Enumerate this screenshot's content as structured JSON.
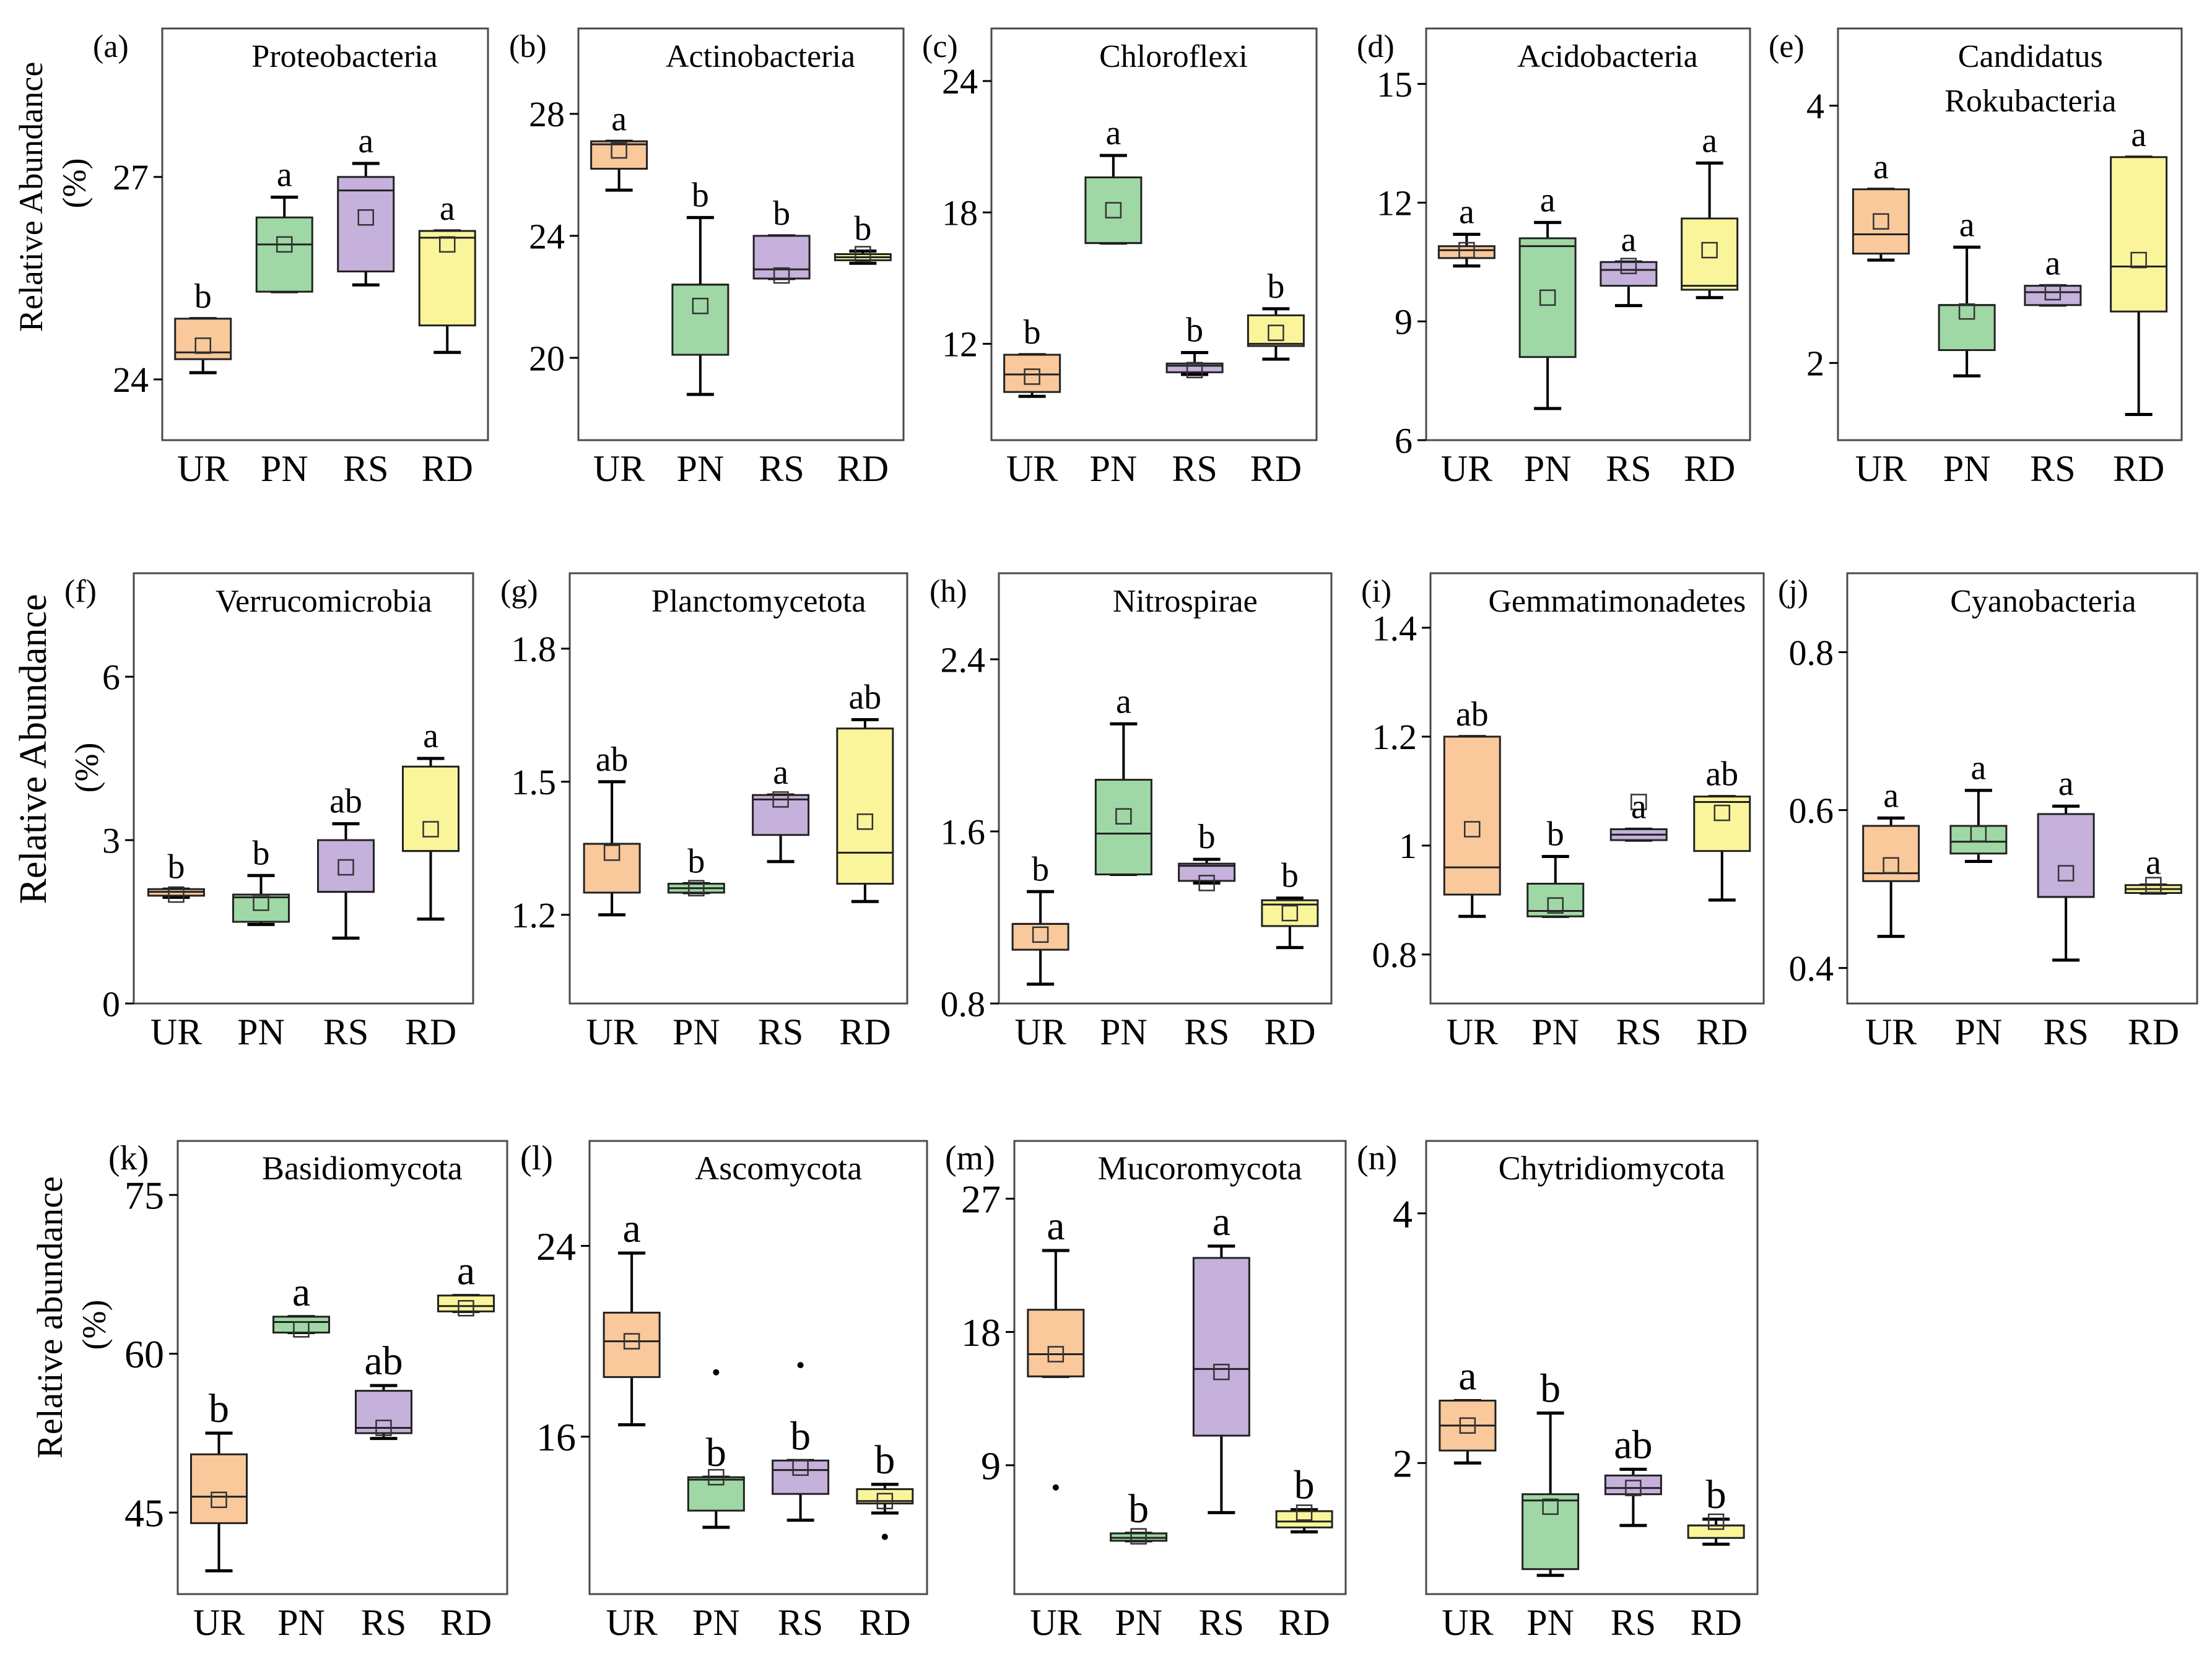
{
  "groups": [
    "UR",
    "PN",
    "RS",
    "RD"
  ],
  "colors": {
    "UR": "#f9c89b",
    "PN": "#9fd8a4",
    "RS": "#c5b1dc",
    "RD": "#faf59a"
  },
  "row_ylabels": [
    {
      "line1": "Relative Abundance",
      "line2": "(%)"
    },
    {
      "line1": "Relative Abundance",
      "line2": "(%)"
    },
    {
      "line1": "Relative abundance",
      "line2": "(%)"
    }
  ],
  "chart_data": [
    {
      "type": "box",
      "panel": "(a)",
      "title": [
        "Proteobacteria"
      ],
      "ylim": [
        23.1,
        29.2
      ],
      "yticks": [
        24,
        27
      ],
      "boxes": [
        {
          "group": "UR",
          "whisker_low": 24.1,
          "q1": 24.3,
          "median": 24.4,
          "q3": 24.9,
          "whisker_high": 24.9,
          "mean": 24.5,
          "letter": "b"
        },
        {
          "group": "PN",
          "whisker_low": 25.3,
          "q1": 25.3,
          "median": 26.0,
          "q3": 26.4,
          "whisker_high": 26.7,
          "mean": 26.0,
          "letter": "a"
        },
        {
          "group": "RS",
          "whisker_low": 25.4,
          "q1": 25.6,
          "median": 26.8,
          "q3": 27.0,
          "whisker_high": 27.2,
          "mean": 26.4,
          "letter": "a"
        },
        {
          "group": "RD",
          "whisker_low": 24.4,
          "q1": 24.8,
          "median": 26.1,
          "q3": 26.2,
          "whisker_high": 26.2,
          "mean": 26.0,
          "letter": "a"
        }
      ]
    },
    {
      "type": "box",
      "panel": "(b)",
      "title": [
        "Actinobacteria"
      ],
      "ylim": [
        17.3,
        30.8
      ],
      "yticks": [
        20,
        24,
        28
      ],
      "boxes": [
        {
          "group": "UR",
          "whisker_low": 25.5,
          "q1": 26.2,
          "median": 27.0,
          "q3": 27.1,
          "whisker_high": 27.1,
          "mean": 26.8,
          "letter": "a"
        },
        {
          "group": "PN",
          "whisker_low": 18.8,
          "q1": 20.1,
          "median": 22.4,
          "q3": 22.4,
          "whisker_high": 24.6,
          "mean": 21.7,
          "letter": "b"
        },
        {
          "group": "RS",
          "whisker_low": 22.6,
          "q1": 22.6,
          "median": 22.9,
          "q3": 24.0,
          "whisker_high": 24.0,
          "mean": 22.7,
          "letter": "b"
        },
        {
          "group": "RD",
          "whisker_low": 23.1,
          "q1": 23.2,
          "median": 23.3,
          "q3": 23.4,
          "whisker_high": 23.5,
          "mean": 23.4,
          "letter": "b"
        }
      ]
    },
    {
      "type": "box",
      "panel": "(c)",
      "title": [
        "Chloroflexi"
      ],
      "ylim": [
        7.6,
        26.4
      ],
      "yticks": [
        12,
        18,
        24
      ],
      "boxes": [
        {
          "group": "UR",
          "whisker_low": 9.6,
          "q1": 9.8,
          "median": 10.6,
          "q3": 11.5,
          "whisker_high": 11.5,
          "mean": 10.5,
          "letter": "b"
        },
        {
          "group": "PN",
          "whisker_low": 16.6,
          "q1": 16.6,
          "median": 16.6,
          "q3": 19.6,
          "whisker_high": 20.6,
          "mean": 18.1,
          "letter": "a"
        },
        {
          "group": "RS",
          "whisker_low": 10.6,
          "q1": 10.7,
          "median": 11.0,
          "q3": 11.1,
          "whisker_high": 11.6,
          "mean": 10.8,
          "letter": "b"
        },
        {
          "group": "RD",
          "whisker_low": 11.3,
          "q1": 11.9,
          "median": 12.0,
          "q3": 13.3,
          "whisker_high": 13.6,
          "mean": 12.5,
          "letter": "b"
        }
      ]
    },
    {
      "type": "box",
      "panel": "(d)",
      "title": [
        "Acidobacteria"
      ],
      "ylim": [
        6,
        16.4
      ],
      "yticks": [
        6,
        9,
        12,
        15
      ],
      "boxes": [
        {
          "group": "UR",
          "whisker_low": 10.4,
          "q1": 10.6,
          "median": 10.8,
          "q3": 10.9,
          "whisker_high": 11.2,
          "mean": 10.8,
          "letter": "a"
        },
        {
          "group": "PN",
          "whisker_low": 6.8,
          "q1": 8.1,
          "median": 10.9,
          "q3": 11.1,
          "whisker_high": 11.5,
          "mean": 9.6,
          "letter": "a"
        },
        {
          "group": "RS",
          "whisker_low": 9.4,
          "q1": 9.9,
          "median": 10.3,
          "q3": 10.5,
          "whisker_high": 10.5,
          "mean": 10.4,
          "letter": "a"
        },
        {
          "group": "RD",
          "whisker_low": 9.6,
          "q1": 9.8,
          "median": 9.9,
          "q3": 11.6,
          "whisker_high": 13.0,
          "mean": 10.8,
          "letter": "a"
        }
      ]
    },
    {
      "type": "box",
      "panel": "(e)",
      "title": [
        "Candidatus",
        "Rokubacteria"
      ],
      "ylim": [
        1.4,
        4.6
      ],
      "yticks": [
        2,
        4
      ],
      "boxes": [
        {
          "group": "UR",
          "whisker_low": 2.8,
          "q1": 2.85,
          "median": 3.0,
          "q3": 3.35,
          "whisker_high": 3.35,
          "mean": 3.1,
          "letter": "a"
        },
        {
          "group": "PN",
          "whisker_low": 1.9,
          "q1": 2.1,
          "median": 2.45,
          "q3": 2.45,
          "whisker_high": 2.9,
          "mean": 2.4,
          "letter": "a"
        },
        {
          "group": "RS",
          "whisker_low": 2.45,
          "q1": 2.45,
          "median": 2.55,
          "q3": 2.6,
          "whisker_high": 2.6,
          "mean": 2.55,
          "letter": "a"
        },
        {
          "group": "RD",
          "whisker_low": 1.6,
          "q1": 2.4,
          "median": 2.75,
          "q3": 3.6,
          "whisker_high": 3.6,
          "mean": 2.8,
          "letter": "a"
        }
      ]
    },
    {
      "type": "box",
      "panel": "(f)",
      "title": [
        "Verrucomicrobia"
      ],
      "ylim": [
        0,
        7.9
      ],
      "yticks": [
        0,
        3,
        6
      ],
      "boxes": [
        {
          "group": "UR",
          "whisker_low": 1.95,
          "q1": 1.98,
          "median": 2.05,
          "q3": 2.1,
          "whisker_high": 2.1,
          "mean": 2.0,
          "letter": "b"
        },
        {
          "group": "PN",
          "whisker_low": 1.45,
          "q1": 1.5,
          "median": 1.95,
          "q3": 2.0,
          "whisker_high": 2.35,
          "mean": 1.85,
          "letter": "b"
        },
        {
          "group": "RS",
          "whisker_low": 1.2,
          "q1": 2.05,
          "median": 2.05,
          "q3": 3.0,
          "whisker_high": 3.3,
          "mean": 2.5,
          "letter": "ab"
        },
        {
          "group": "RD",
          "whisker_low": 1.55,
          "q1": 2.8,
          "median": 2.8,
          "q3": 4.35,
          "whisker_high": 4.5,
          "mean": 3.2,
          "letter": "a"
        }
      ]
    },
    {
      "type": "box",
      "panel": "(g)",
      "title": [
        "Planctomycetota"
      ],
      "ylim": [
        1.0,
        1.97
      ],
      "yticks": [
        1.2,
        1.5,
        1.8
      ],
      "boxes": [
        {
          "group": "UR",
          "whisker_low": 1.2,
          "q1": 1.25,
          "median": 1.36,
          "q3": 1.36,
          "whisker_high": 1.5,
          "mean": 1.34,
          "letter": "ab"
        },
        {
          "group": "PN",
          "whisker_low": 1.25,
          "q1": 1.25,
          "median": 1.26,
          "q3": 1.27,
          "whisker_high": 1.27,
          "mean": 1.26,
          "letter": "b"
        },
        {
          "group": "RS",
          "whisker_low": 1.32,
          "q1": 1.38,
          "median": 1.46,
          "q3": 1.47,
          "whisker_high": 1.47,
          "mean": 1.46,
          "letter": "a"
        },
        {
          "group": "RD",
          "whisker_low": 1.23,
          "q1": 1.27,
          "median": 1.34,
          "q3": 1.62,
          "whisker_high": 1.64,
          "mean": 1.41,
          "letter": "ab"
        }
      ]
    },
    {
      "type": "box",
      "panel": "(h)",
      "title": [
        "Nitrospirae"
      ],
      "ylim": [
        0.8,
        2.8
      ],
      "yticks": [
        0.8,
        1.6,
        2.4
      ],
      "boxes": [
        {
          "group": "UR",
          "whisker_low": 0.89,
          "q1": 1.05,
          "median": 1.17,
          "q3": 1.17,
          "whisker_high": 1.32,
          "mean": 1.12,
          "letter": "b"
        },
        {
          "group": "PN",
          "whisker_low": 1.4,
          "q1": 1.4,
          "median": 1.59,
          "q3": 1.84,
          "whisker_high": 2.1,
          "mean": 1.67,
          "letter": "a"
        },
        {
          "group": "RS",
          "whisker_low": 1.36,
          "q1": 1.37,
          "median": 1.44,
          "q3": 1.45,
          "whisker_high": 1.47,
          "mean": 1.36,
          "letter": "b"
        },
        {
          "group": "RD",
          "whisker_low": 1.06,
          "q1": 1.16,
          "median": 1.26,
          "q3": 1.28,
          "whisker_high": 1.29,
          "mean": 1.22,
          "letter": "b"
        }
      ]
    },
    {
      "type": "box",
      "panel": "(i)",
      "title": [
        "Gemmatimonadetes"
      ],
      "ylim": [
        0.71,
        1.5
      ],
      "yticks": [
        0.8,
        1.0,
        1.2,
        1.4
      ],
      "boxes": [
        {
          "group": "UR",
          "whisker_low": 0.87,
          "q1": 0.91,
          "median": 0.96,
          "q3": 1.2,
          "whisker_high": 1.2,
          "mean": 1.03,
          "letter": "ab"
        },
        {
          "group": "PN",
          "whisker_low": 0.87,
          "q1": 0.87,
          "median": 0.88,
          "q3": 0.93,
          "whisker_high": 0.98,
          "mean": 0.89,
          "letter": "b"
        },
        {
          "group": "RS",
          "whisker_low": 1.01,
          "q1": 1.01,
          "median": 1.02,
          "q3": 1.03,
          "whisker_high": 1.03,
          "mean": 1.08,
          "letter": "a"
        },
        {
          "group": "RD",
          "whisker_low": 0.9,
          "q1": 0.99,
          "median": 1.08,
          "q3": 1.09,
          "whisker_high": 1.09,
          "mean": 1.06,
          "letter": "ab"
        }
      ]
    },
    {
      "type": "box",
      "panel": "(j)",
      "title": [
        "Cyanobacteria"
      ],
      "ylim": [
        0.355,
        0.9
      ],
      "yticks": [
        0.4,
        0.6,
        0.8
      ],
      "boxes": [
        {
          "group": "UR",
          "whisker_low": 0.44,
          "q1": 0.51,
          "median": 0.52,
          "q3": 0.58,
          "whisker_high": 0.59,
          "mean": 0.53,
          "letter": "a"
        },
        {
          "group": "PN",
          "whisker_low": 0.535,
          "q1": 0.545,
          "median": 0.56,
          "q3": 0.58,
          "whisker_high": 0.625,
          "mean": 0.57,
          "letter": "a"
        },
        {
          "group": "RS",
          "whisker_low": 0.41,
          "q1": 0.49,
          "median": 0.49,
          "q3": 0.595,
          "whisker_high": 0.605,
          "mean": 0.52,
          "letter": "a"
        },
        {
          "group": "RD",
          "whisker_low": 0.495,
          "q1": 0.495,
          "median": 0.5,
          "q3": 0.505,
          "whisker_high": 0.505,
          "mean": 0.505,
          "letter": "a"
        }
      ]
    },
    {
      "type": "box",
      "panel": "(k)",
      "title": [
        "Basidiomycota"
      ],
      "ylim": [
        37.3,
        80.1
      ],
      "yticks": [
        45,
        60,
        75
      ],
      "boxes": [
        {
          "group": "UR",
          "whisker_low": 39.5,
          "q1": 44.0,
          "median": 46.5,
          "q3": 50.5,
          "whisker_high": 52.5,
          "mean": 46.2,
          "letter": "b"
        },
        {
          "group": "PN",
          "whisker_low": 62.0,
          "q1": 62.0,
          "median": 63.0,
          "q3": 63.5,
          "whisker_high": 63.5,
          "mean": 62.3,
          "letter": "a"
        },
        {
          "group": "RS",
          "whisker_low": 52.0,
          "q1": 52.5,
          "median": 53.0,
          "q3": 56.5,
          "whisker_high": 57.0,
          "mean": 53.0,
          "letter": "ab"
        },
        {
          "group": "RD",
          "whisker_low": 64.0,
          "q1": 64.0,
          "median": 64.5,
          "q3": 65.5,
          "whisker_high": 65.5,
          "mean": 64.3,
          "letter": "a"
        }
      ]
    },
    {
      "type": "box",
      "panel": "(l)",
      "title": [
        "Ascomycota"
      ],
      "ylim": [
        9.4,
        28.4
      ],
      "yticks": [
        16,
        24
      ],
      "boxes": [
        {
          "group": "UR",
          "whisker_low": 16.5,
          "q1": 18.5,
          "median": 20.0,
          "q3": 21.2,
          "whisker_high": 23.7,
          "mean": 20.0,
          "letter": "a",
          "outliers": []
        },
        {
          "group": "PN",
          "whisker_low": 12.2,
          "q1": 12.9,
          "median": 14.2,
          "q3": 14.3,
          "whisker_high": 14.3,
          "mean": 14.3,
          "letter": "b",
          "outliers": [
            18.7
          ]
        },
        {
          "group": "RS",
          "whisker_low": 12.5,
          "q1": 13.6,
          "median": 14.6,
          "q3": 15.0,
          "whisker_high": 15.0,
          "mean": 14.7,
          "letter": "b",
          "outliers": [
            19.0
          ]
        },
        {
          "group": "RD",
          "whisker_low": 12.8,
          "q1": 13.2,
          "median": 13.3,
          "q3": 13.8,
          "whisker_high": 14.0,
          "mean": 13.3,
          "letter": "b",
          "outliers": [
            11.8
          ]
        }
      ]
    },
    {
      "type": "box",
      "panel": "(m)",
      "title": [
        "Mucoromycota"
      ],
      "ylim": [
        0.3,
        30.9
      ],
      "yticks": [
        9,
        18,
        27
      ],
      "boxes": [
        {
          "group": "UR",
          "whisker_low": 15.0,
          "q1": 15.0,
          "median": 16.5,
          "q3": 19.5,
          "whisker_high": 23.5,
          "mean": 16.5,
          "letter": "a",
          "outliers": [
            7.5
          ]
        },
        {
          "group": "PN",
          "whisker_low": 3.9,
          "q1": 3.9,
          "median": 4.1,
          "q3": 4.4,
          "whisker_high": 4.4,
          "mean": 4.2,
          "letter": "b",
          "outliers": []
        },
        {
          "group": "RS",
          "whisker_low": 5.8,
          "q1": 11.0,
          "median": 15.5,
          "q3": 23.0,
          "whisker_high": 23.8,
          "mean": 15.3,
          "letter": "a",
          "outliers": []
        },
        {
          "group": "RD",
          "whisker_low": 4.5,
          "q1": 4.8,
          "median": 5.2,
          "q3": 5.9,
          "whisker_high": 6.0,
          "mean": 5.8,
          "letter": "b",
          "outliers": []
        }
      ]
    },
    {
      "type": "box",
      "panel": "(n)",
      "title": [
        "Chytridiomycota"
      ],
      "ylim": [
        0.95,
        4.58
      ],
      "yticks": [
        2,
        4
      ],
      "boxes": [
        {
          "group": "UR",
          "whisker_low": 2.0,
          "q1": 2.1,
          "median": 2.3,
          "q3": 2.5,
          "whisker_high": 2.5,
          "mean": 2.3,
          "letter": "a"
        },
        {
          "group": "PN",
          "whisker_low": 1.1,
          "q1": 1.15,
          "median": 1.7,
          "q3": 1.75,
          "whisker_high": 2.4,
          "mean": 1.65,
          "letter": "b"
        },
        {
          "group": "RS",
          "whisker_low": 1.5,
          "q1": 1.75,
          "median": 1.8,
          "q3": 1.9,
          "whisker_high": 1.95,
          "mean": 1.8,
          "letter": "ab"
        },
        {
          "group": "RD",
          "whisker_low": 1.35,
          "q1": 1.4,
          "median": 1.5,
          "q3": 1.5,
          "whisker_high": 1.55,
          "mean": 1.53,
          "letter": "b"
        }
      ]
    }
  ]
}
